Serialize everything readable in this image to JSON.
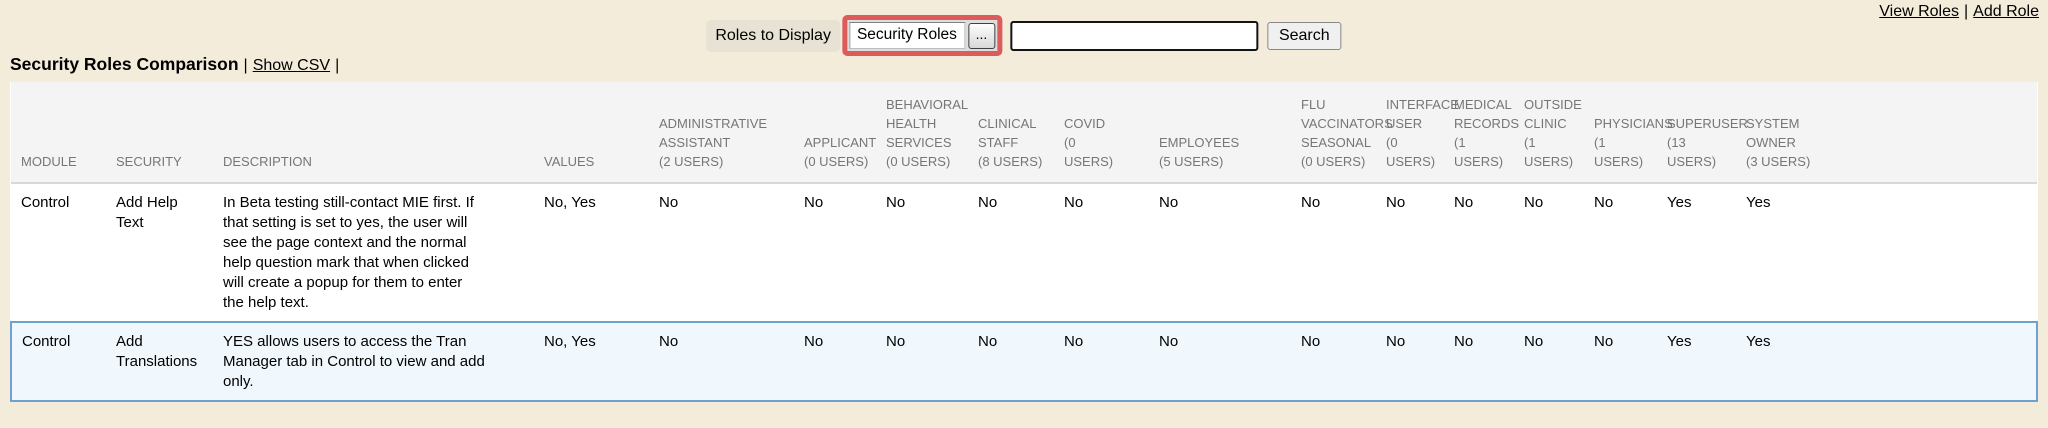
{
  "colors": {
    "page_bg": "#F3ECDB",
    "accent_red": "#DC5B5B",
    "row_highlight_bg": "#F1F8FD",
    "row_highlight_border": "#6FA0CE",
    "header_text": "#767676"
  },
  "top_links": {
    "view_roles": "View Roles",
    "separator": "|",
    "add_role": "Add Role"
  },
  "controls": {
    "roles_to_display_label": "Roles to Display",
    "roles_select_value": "Security Roles",
    "roles_picker_button": "...",
    "search_input_value": "",
    "search_button_label": "Search"
  },
  "heading": {
    "title": "Security Roles Comparison",
    "separator": "|",
    "show_csv_link": "Show CSV",
    "trailing_separator": "|"
  },
  "table": {
    "fixed_headers": [
      "MODULE",
      "SECURITY",
      "DESCRIPTION",
      "VALUES"
    ],
    "role_headers": [
      {
        "label_lines": [
          "ADMINISTRATIVE",
          "ASSISTANT",
          "(2 USERS)"
        ]
      },
      {
        "label_lines": [
          "APPLICANT",
          "(0 USERS)"
        ]
      },
      {
        "label_lines": [
          "BEHAVIORAL",
          "HEALTH",
          "SERVICES",
          "(0 USERS)"
        ]
      },
      {
        "label_lines": [
          "CLINICAL",
          "STAFF",
          "(8 USERS)"
        ]
      },
      {
        "label_lines": [
          "COVID",
          "(0",
          "USERS)"
        ]
      },
      {
        "label_lines": [
          "EMPLOYEES",
          "(5 USERS)"
        ]
      },
      {
        "label_lines": [
          "FLU",
          "VACCINATORS",
          "SEASONAL",
          "(0 USERS)"
        ]
      },
      {
        "label_lines": [
          "INTERFACE",
          "USER",
          "(0 USERS)"
        ]
      },
      {
        "label_lines": [
          "MEDICAL",
          "RECORDS",
          "(1 USERS)"
        ]
      },
      {
        "label_lines": [
          "OUTSIDE",
          "CLINIC",
          "(1 USERS)"
        ]
      },
      {
        "label_lines": [
          "PHYSICIANS",
          "(1 USERS)"
        ]
      },
      {
        "label_lines": [
          "SUPERUSER",
          "(13 USERS)"
        ]
      },
      {
        "label_lines": [
          "SYSTEM",
          "OWNER",
          "(3 USERS)"
        ]
      }
    ],
    "rows": [
      {
        "module": "Control",
        "security": "Add Help Text",
        "description": "In Beta testing still-contact MIE first. If that setting is set to yes, the user will see the page context and the normal help question mark that when clicked will create a popup for them to enter the help text.",
        "values": "No, Yes",
        "role_values": [
          "No",
          "No",
          "No",
          "No",
          "No",
          "No",
          "No",
          "No",
          "No",
          "No",
          "No",
          "Yes",
          "Yes"
        ],
        "highlighted": false
      },
      {
        "module": "Control",
        "security": "Add Translations",
        "description": "YES allows users to access the Tran Manager tab in Control to view and add only.",
        "values": "No, Yes",
        "role_values": [
          "No",
          "No",
          "No",
          "No",
          "No",
          "No",
          "No",
          "No",
          "No",
          "No",
          "No",
          "Yes",
          "Yes"
        ],
        "highlighted": true
      }
    ]
  }
}
